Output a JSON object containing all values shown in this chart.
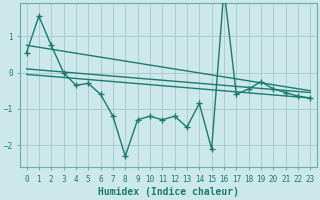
{
  "xlabel": "Humidex (Indice chaleur)",
  "background_color": "#cce8ea",
  "grid_color": "#aacdd0",
  "line_color": "#1a7a6e",
  "spine_color": "#6aacaa",
  "xlim": [
    -0.5,
    23.5
  ],
  "ylim": [
    -2.6,
    1.9
  ],
  "yticks": [
    -2,
    -1,
    0,
    1
  ],
  "xticks": [
    0,
    1,
    2,
    3,
    4,
    5,
    6,
    7,
    8,
    9,
    10,
    11,
    12,
    13,
    14,
    15,
    16,
    17,
    18,
    19,
    20,
    21,
    22,
    23
  ],
  "series1_x": [
    0,
    1,
    2,
    3,
    4,
    5,
    6,
    7,
    8,
    9,
    10,
    11,
    12,
    13,
    14,
    15,
    16,
    17,
    18,
    19,
    20,
    21,
    22,
    23
  ],
  "series1_y": [
    0.55,
    1.55,
    0.75,
    0.0,
    -0.35,
    -0.3,
    -0.6,
    -1.2,
    -2.3,
    -1.3,
    -1.2,
    -1.3,
    -1.2,
    -1.5,
    -0.85,
    -2.1,
    2.3,
    -0.6,
    -0.45,
    -0.25,
    -0.45,
    -0.55,
    -0.65,
    -0.7
  ],
  "series2_x": [
    0,
    23
  ],
  "series2_y": [
    0.75,
    -0.5
  ],
  "series3_x": [
    0,
    23
  ],
  "series3_y": [
    0.1,
    -0.55
  ],
  "series4_x": [
    0,
    23
  ],
  "series4_y": [
    -0.05,
    -0.7
  ]
}
